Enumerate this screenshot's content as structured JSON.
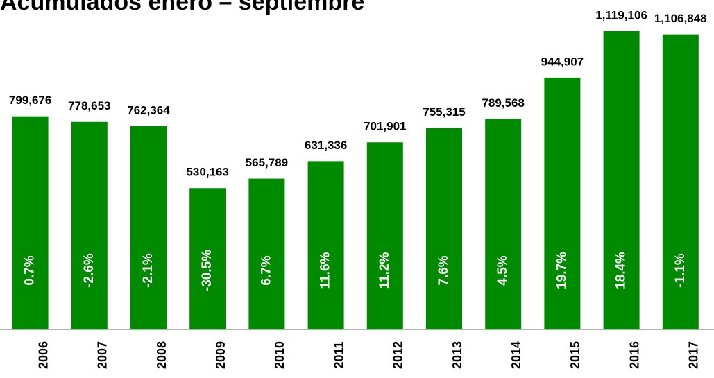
{
  "chart_data": {
    "type": "bar",
    "title": "Acumulados enero – septiembre",
    "categories": [
      "2006",
      "2007",
      "2008",
      "2009",
      "2010",
      "2011",
      "2012",
      "2013",
      "2014",
      "2015",
      "2016",
      "2017"
    ],
    "values": [
      799676,
      778653,
      762364,
      530163,
      565789,
      631336,
      701901,
      755315,
      789568,
      944907,
      1119106,
      1106848
    ],
    "value_labels": [
      "799,676",
      "778,653",
      "762,364",
      "530,163",
      "565,789",
      "631,336",
      "701,901",
      "755,315",
      "789,568",
      "944,907",
      "1,119,106",
      "1,106,848"
    ],
    "change_labels": [
      "0.7%",
      "-2.6%",
      "-2.1%",
      "-30.5%",
      "6.7%",
      "11.6%",
      "11.2%",
      "7.6%",
      "4.5%",
      "19.7%",
      "18.4%",
      "-1.1%"
    ],
    "color": "#008a00",
    "ylim": [
      0,
      1236000
    ]
  }
}
